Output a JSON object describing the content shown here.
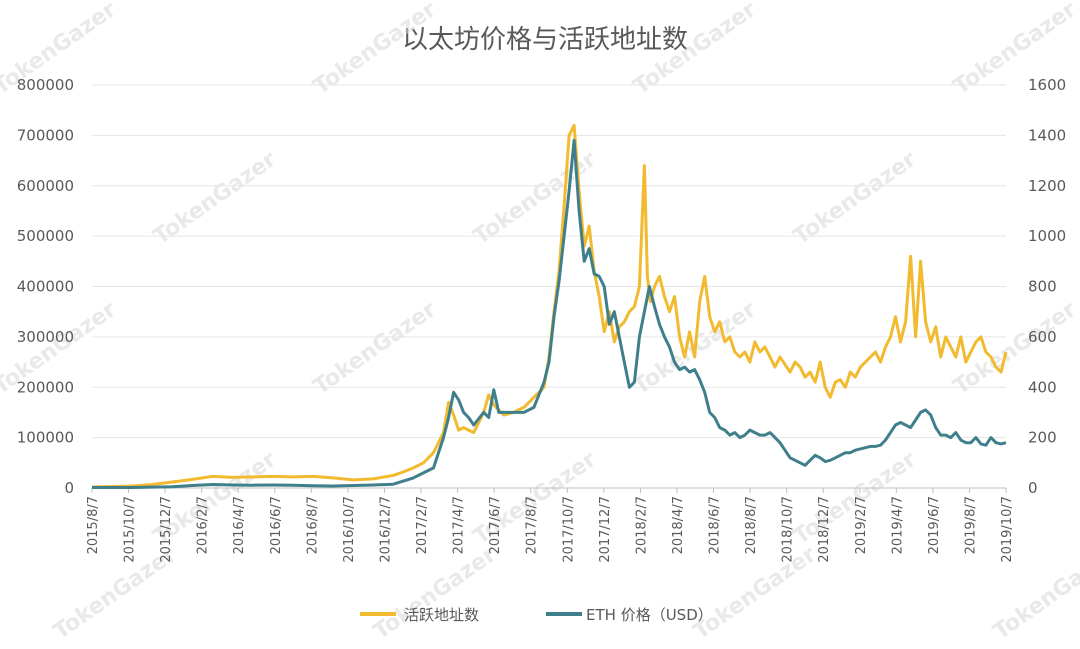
{
  "chart_data": {
    "type": "line",
    "title": "以太坊价格与活跃地址数",
    "watermark": "TokenGazer",
    "x_tick_labels": [
      "2015/8/7",
      "2015/10/7",
      "2015/12/7",
      "2016/2/7",
      "2016/4/7",
      "2016/6/7",
      "2016/8/7",
      "2016/10/7",
      "2016/12/7",
      "2017/2/7",
      "2017/4/7",
      "2017/6/7",
      "2017/8/7",
      "2017/10/7",
      "2017/12/7",
      "2018/2/7",
      "2018/4/7",
      "2018/6/7",
      "2018/8/7",
      "2018/10/7",
      "2018/12/7",
      "2019/2/7",
      "2019/4/7",
      "2019/6/7",
      "2019/8/7",
      "2019/10/7"
    ],
    "left_axis": {
      "ylim": [
        0,
        800000
      ],
      "ticks": [
        "0",
        "100000",
        "200000",
        "300000",
        "400000",
        "500000",
        "600000",
        "700000",
        "800000"
      ]
    },
    "right_axis": {
      "ylim": [
        0,
        1600
      ],
      "ticks": [
        "0",
        "200",
        "400",
        "600",
        "800",
        "1000",
        "1200",
        "1400",
        "1600"
      ]
    },
    "series": [
      {
        "name": "活跃地址数",
        "axis": "left",
        "color": "#F2BA2E",
        "points": [
          [
            0,
            2000
          ],
          [
            2,
            3000
          ],
          [
            4,
            4000
          ],
          [
            6,
            7000
          ],
          [
            8,
            12000
          ],
          [
            10,
            17000
          ],
          [
            11,
            20000
          ],
          [
            12,
            23000
          ],
          [
            14,
            21000
          ],
          [
            16,
            22000
          ],
          [
            18,
            23000
          ],
          [
            20,
            22000
          ],
          [
            22,
            23000
          ],
          [
            24,
            20000
          ],
          [
            26,
            16000
          ],
          [
            28,
            18000
          ],
          [
            30,
            25000
          ],
          [
            31,
            32000
          ],
          [
            32,
            40000
          ],
          [
            33,
            50000
          ],
          [
            34,
            70000
          ],
          [
            35,
            110000
          ],
          [
            35.5,
            170000
          ],
          [
            36,
            145000
          ],
          [
            36.5,
            115000
          ],
          [
            37,
            120000
          ],
          [
            38,
            110000
          ],
          [
            39,
            150000
          ],
          [
            39.5,
            185000
          ],
          [
            40,
            165000
          ],
          [
            41,
            145000
          ],
          [
            42,
            150000
          ],
          [
            43,
            160000
          ],
          [
            44,
            180000
          ],
          [
            45,
            200000
          ],
          [
            45.5,
            260000
          ],
          [
            46,
            350000
          ],
          [
            46.5,
            430000
          ],
          [
            47,
            560000
          ],
          [
            47.5,
            700000
          ],
          [
            48,
            720000
          ],
          [
            48.5,
            590000
          ],
          [
            49,
            480000
          ],
          [
            49.5,
            520000
          ],
          [
            50,
            430000
          ],
          [
            50.5,
            380000
          ],
          [
            51,
            310000
          ],
          [
            51.5,
            350000
          ],
          [
            52,
            290000
          ],
          [
            52.5,
            320000
          ],
          [
            53,
            330000
          ],
          [
            53.5,
            350000
          ],
          [
            54,
            360000
          ],
          [
            54.5,
            400000
          ],
          [
            55,
            640000
          ],
          [
            55.3,
            420000
          ],
          [
            55.6,
            370000
          ],
          [
            56,
            400000
          ],
          [
            56.5,
            420000
          ],
          [
            57,
            380000
          ],
          [
            57.5,
            350000
          ],
          [
            58,
            380000
          ],
          [
            58.5,
            300000
          ],
          [
            59,
            260000
          ],
          [
            59.5,
            310000
          ],
          [
            60,
            260000
          ],
          [
            60.5,
            370000
          ],
          [
            61,
            420000
          ],
          [
            61.5,
            340000
          ],
          [
            62,
            310000
          ],
          [
            62.5,
            330000
          ],
          [
            63,
            290000
          ],
          [
            63.5,
            300000
          ],
          [
            64,
            270000
          ],
          [
            64.5,
            260000
          ],
          [
            65,
            270000
          ],
          [
            65.5,
            250000
          ],
          [
            66,
            290000
          ],
          [
            66.5,
            270000
          ],
          [
            67,
            280000
          ],
          [
            67.5,
            260000
          ],
          [
            68,
            240000
          ],
          [
            68.5,
            260000
          ],
          [
            69,
            245000
          ],
          [
            69.5,
            230000
          ],
          [
            70,
            250000
          ],
          [
            70.5,
            240000
          ],
          [
            71,
            220000
          ],
          [
            71.5,
            230000
          ],
          [
            72,
            210000
          ],
          [
            72.5,
            250000
          ],
          [
            73,
            200000
          ],
          [
            73.5,
            180000
          ],
          [
            74,
            210000
          ],
          [
            74.5,
            215000
          ],
          [
            75,
            200000
          ],
          [
            75.5,
            230000
          ],
          [
            76,
            220000
          ],
          [
            76.5,
            240000
          ],
          [
            77,
            250000
          ],
          [
            77.5,
            260000
          ],
          [
            78,
            270000
          ],
          [
            78.5,
            250000
          ],
          [
            79,
            280000
          ],
          [
            79.5,
            300000
          ],
          [
            80,
            340000
          ],
          [
            80.5,
            290000
          ],
          [
            81,
            330000
          ],
          [
            81.5,
            460000
          ],
          [
            82,
            300000
          ],
          [
            82.5,
            450000
          ],
          [
            83,
            330000
          ],
          [
            83.5,
            290000
          ],
          [
            84,
            320000
          ],
          [
            84.5,
            260000
          ],
          [
            85,
            300000
          ],
          [
            85.5,
            280000
          ],
          [
            86,
            260000
          ],
          [
            86.5,
            300000
          ],
          [
            87,
            250000
          ],
          [
            87.5,
            270000
          ],
          [
            88,
            290000
          ],
          [
            88.5,
            300000
          ],
          [
            89,
            270000
          ],
          [
            89.5,
            260000
          ],
          [
            90,
            240000
          ],
          [
            90.5,
            230000
          ],
          [
            91,
            270000
          ]
        ]
      },
      {
        "name": "ETH 价格（USD）",
        "axis": "right",
        "color": "#3F7F8C",
        "points": [
          [
            0,
            2
          ],
          [
            4,
            2
          ],
          [
            8,
            5
          ],
          [
            10,
            10
          ],
          [
            12,
            14
          ],
          [
            14,
            12
          ],
          [
            16,
            11
          ],
          [
            18,
            12
          ],
          [
            20,
            11
          ],
          [
            22,
            9
          ],
          [
            24,
            8
          ],
          [
            26,
            10
          ],
          [
            28,
            12
          ],
          [
            30,
            15
          ],
          [
            32,
            40
          ],
          [
            34,
            80
          ],
          [
            35,
            200
          ],
          [
            35.5,
            280
          ],
          [
            36,
            380
          ],
          [
            36.5,
            350
          ],
          [
            37,
            300
          ],
          [
            37.5,
            280
          ],
          [
            38,
            250
          ],
          [
            39,
            300
          ],
          [
            39.5,
            280
          ],
          [
            40,
            390
          ],
          [
            40.5,
            300
          ],
          [
            41,
            300
          ],
          [
            42,
            300
          ],
          [
            43,
            300
          ],
          [
            44,
            320
          ],
          [
            45,
            420
          ],
          [
            45.5,
            500
          ],
          [
            46,
            680
          ],
          [
            46.5,
            820
          ],
          [
            47,
            1000
          ],
          [
            47.5,
            1180
          ],
          [
            48,
            1380
          ],
          [
            48.5,
            1100
          ],
          [
            49,
            900
          ],
          [
            49.5,
            950
          ],
          [
            50,
            850
          ],
          [
            50.5,
            840
          ],
          [
            51,
            800
          ],
          [
            51.5,
            650
          ],
          [
            52,
            700
          ],
          [
            52.5,
            600
          ],
          [
            53,
            500
          ],
          [
            53.5,
            400
          ],
          [
            54,
            420
          ],
          [
            54.5,
            600
          ],
          [
            55,
            700
          ],
          [
            55.5,
            800
          ],
          [
            56,
            720
          ],
          [
            56.5,
            650
          ],
          [
            57,
            600
          ],
          [
            57.5,
            560
          ],
          [
            58,
            500
          ],
          [
            58.5,
            470
          ],
          [
            59,
            480
          ],
          [
            59.5,
            460
          ],
          [
            60,
            470
          ],
          [
            60.5,
            430
          ],
          [
            61,
            380
          ],
          [
            61.5,
            300
          ],
          [
            62,
            280
          ],
          [
            62.5,
            240
          ],
          [
            63,
            230
          ],
          [
            63.5,
            210
          ],
          [
            64,
            220
          ],
          [
            64.5,
            200
          ],
          [
            65,
            210
          ],
          [
            65.5,
            230
          ],
          [
            66,
            220
          ],
          [
            66.5,
            210
          ],
          [
            67,
            210
          ],
          [
            67.5,
            220
          ],
          [
            68,
            200
          ],
          [
            68.5,
            180
          ],
          [
            69,
            150
          ],
          [
            69.5,
            120
          ],
          [
            70,
            110
          ],
          [
            70.5,
            100
          ],
          [
            71,
            90
          ],
          [
            71.5,
            110
          ],
          [
            72,
            130
          ],
          [
            72.5,
            120
          ],
          [
            73,
            105
          ],
          [
            73.5,
            110
          ],
          [
            74,
            120
          ],
          [
            74.5,
            130
          ],
          [
            75,
            140
          ],
          [
            75.5,
            140
          ],
          [
            76,
            150
          ],
          [
            77,
            160
          ],
          [
            77.5,
            165
          ],
          [
            78,
            165
          ],
          [
            78.5,
            170
          ],
          [
            79,
            190
          ],
          [
            79.5,
            220
          ],
          [
            80,
            250
          ],
          [
            80.5,
            260
          ],
          [
            81,
            250
          ],
          [
            81.5,
            240
          ],
          [
            82,
            270
          ],
          [
            82.5,
            300
          ],
          [
            83,
            310
          ],
          [
            83.5,
            290
          ],
          [
            84,
            240
          ],
          [
            84.5,
            210
          ],
          [
            85,
            210
          ],
          [
            85.5,
            200
          ],
          [
            86,
            220
          ],
          [
            86.5,
            190
          ],
          [
            87,
            180
          ],
          [
            87.5,
            180
          ],
          [
            88,
            200
          ],
          [
            88.5,
            175
          ],
          [
            89,
            170
          ],
          [
            89.5,
            200
          ],
          [
            90,
            180
          ],
          [
            90.5,
            175
          ],
          [
            91,
            180
          ]
        ]
      }
    ],
    "x_range": [
      0,
      91
    ],
    "legend_position": "bottom-center"
  }
}
